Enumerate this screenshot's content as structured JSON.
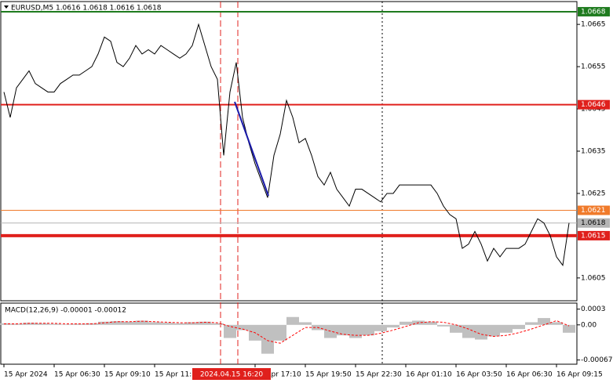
{
  "chart_data": [
    {
      "type": "line",
      "title": "EURUSD,M5  1.0616 1.0618 1.0616 1.0618",
      "cursor_label": "2024.04.15 16:20",
      "color": "#000000",
      "categories": [
        "15 Apr 2024",
        null,
        null,
        null,
        null,
        null,
        null,
        null,
        "15 Apr 06:30",
        null,
        null,
        null,
        null,
        null,
        null,
        null,
        "15 Apr 09:10",
        null,
        null,
        null,
        null,
        null,
        null,
        null,
        "15 Apr 11:50",
        null,
        null,
        null,
        null,
        null,
        null,
        null,
        null,
        null,
        null,
        null,
        null,
        null,
        null,
        null,
        "15 Apr 17:10",
        null,
        null,
        null,
        null,
        null,
        null,
        null,
        "15 Apr 19:50",
        null,
        null,
        null,
        null,
        null,
        null,
        null,
        "15 Apr 22:30",
        null,
        null,
        null,
        null,
        null,
        null,
        null,
        "16 Apr 01:10",
        null,
        null,
        null,
        null,
        null,
        null,
        null,
        "16 Apr 03:50",
        null,
        null,
        null,
        null,
        null,
        null,
        null,
        "16 Apr 06:30",
        null,
        null,
        null,
        null,
        null,
        null,
        null,
        "16 Apr 09:15",
        null,
        null
      ],
      "values": [
        1.0649,
        1.0643,
        1.065,
        1.0652,
        1.0654,
        1.0651,
        1.065,
        1.0649,
        1.0649,
        1.0651,
        1.0652,
        1.0653,
        1.0653,
        1.0654,
        1.0655,
        1.0658,
        1.0662,
        1.0661,
        1.0656,
        1.0655,
        1.0657,
        1.066,
        1.0658,
        1.0659,
        1.0658,
        1.066,
        1.0659,
        1.0658,
        1.0657,
        1.0658,
        1.066,
        1.0665,
        1.066,
        1.0655,
        1.0652,
        1.0634,
        1.0649,
        1.0656,
        1.0643,
        1.0637,
        1.0632,
        1.0628,
        1.0624,
        1.0634,
        1.0639,
        1.0647,
        1.0643,
        1.0637,
        1.0638,
        1.0634,
        1.0629,
        1.0627,
        1.063,
        1.0626,
        1.0624,
        1.0622,
        1.0626,
        1.0626,
        1.0625,
        1.0624,
        1.0623,
        1.0625,
        1.0625,
        1.0627,
        1.0627,
        1.0627,
        1.0627,
        1.0627,
        1.0627,
        1.0625,
        1.0622,
        1.062,
        1.0619,
        1.0612,
        1.0613,
        1.0616,
        1.0613,
        1.0609,
        1.0612,
        1.061,
        1.0612,
        1.0612,
        1.0612,
        1.0613,
        1.0616,
        1.0619,
        1.0618,
        1.0615,
        1.061,
        1.0608,
        1.0618
      ],
      "ylim": [
        1.05996,
        1.06704
      ],
      "yticks": [
        1.0605,
        1.0625,
        1.0635,
        1.0645,
        1.0655,
        1.0665
      ],
      "levels": [
        {
          "value": 1.0668,
          "color": "#1e7b1e",
          "text_color": "#ffffff",
          "width": 2
        },
        {
          "value": 1.0646,
          "color": "#e0201c",
          "text_color": "#ffffff",
          "width": 2
        },
        {
          "value": 1.0621,
          "color": "#f07a2a",
          "text_color": "#ffffff",
          "width": 1
        },
        {
          "value": 1.0618,
          "color": "#b4b4b4",
          "text_color": "#000000",
          "width": 1
        },
        {
          "value": 1.0615,
          "color": "#e0201c",
          "text_color": "#ffffff",
          "width": 4
        }
      ]
    },
    {
      "type": "macd",
      "title": "MACD(12,26,9) -0.00001 -0.00012",
      "series": [
        {
          "type": "bar",
          "color": "#c0c0c0",
          "values": [
            3e-05,
            2e-05,
            4e-05,
            3e-05,
            2e-05,
            1e-05,
            2e-05,
            3e-05,
            6e-05,
            7e-05,
            6e-05,
            8e-05,
            5e-05,
            4e-05,
            3e-05,
            5e-05,
            6e-05,
            3e-05,
            -0.00025,
            -0.0001,
            -0.0003,
            -0.00055,
            -0.0003,
            0.00015,
            5e-05,
            -0.0001,
            -0.00025,
            -0.0002,
            -0.00025,
            -0.0002,
            -0.00012,
            -5e-05,
            6e-05,
            8e-05,
            6e-05,
            -3e-05,
            -0.00015,
            -0.00025,
            -0.00028,
            -0.00022,
            -0.00015,
            -8e-05,
            5e-05,
            0.00013,
            5e-05,
            -0.00015
          ]
        },
        {
          "type": "line",
          "color": "#ff0000",
          "values": [
            2e-05,
            2e-05,
            3e-05,
            3e-05,
            3e-05,
            2e-05,
            2e-05,
            2e-05,
            4e-05,
            6e-05,
            6e-05,
            7e-05,
            6e-05,
            5e-05,
            4e-05,
            4e-05,
            5e-05,
            4e-05,
            -3e-05,
            -8e-05,
            -0.00015,
            -0.0003,
            -0.00035,
            -0.0002,
            -5e-05,
            -5e-05,
            -0.00012,
            -0.00018,
            -0.0002,
            -0.0002,
            -0.00016,
            -0.0001,
            -3e-05,
            4e-05,
            6e-05,
            5e-05,
            0,
            -8e-05,
            -0.00018,
            -0.00022,
            -0.0002,
            -0.00015,
            -8e-05,
            0,
            8e-05,
            -2e-05
          ]
        }
      ],
      "ylim": [
        -0.00075,
        0.0004
      ],
      "yticks": [
        0.0003,
        {
          "value": 0,
          "label": "0.00"
        },
        -0.00067
      ]
    }
  ]
}
